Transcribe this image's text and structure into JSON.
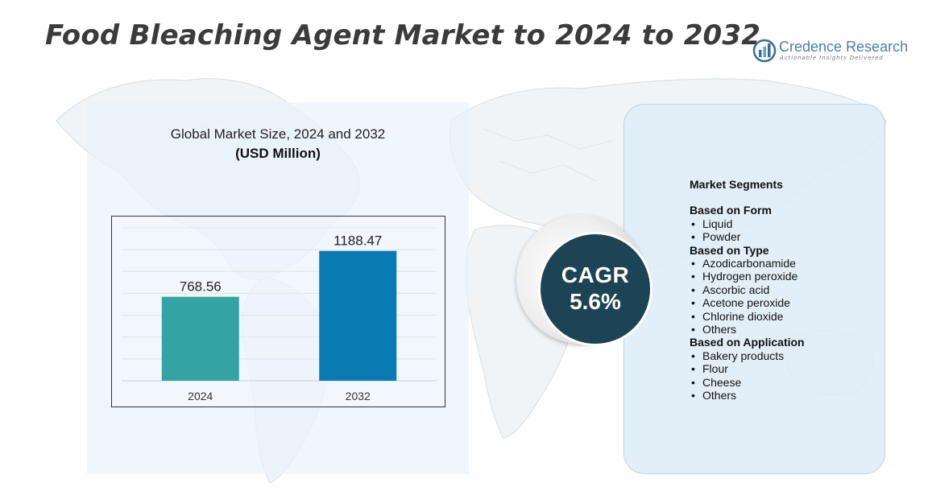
{
  "title": "Food Bleaching Agent Market to 2024 to 2032",
  "logo": {
    "name": "Credence Research",
    "tagline": "Actionable Insights Delivered"
  },
  "colors": {
    "bar_2024": "#34a3a3",
    "bar_2032": "#0a7ab2",
    "cagr_circle": "#1d4454"
  },
  "chart_data": {
    "type": "bar",
    "title": "Global Market Size, 2024 and 2032",
    "subtitle": "(USD Million)",
    "categories": [
      "2024",
      "2032"
    ],
    "values": [
      768.56,
      1188.47
    ],
    "value_labels": [
      "768.56",
      "1188.47"
    ],
    "ylim": [
      0,
      1400
    ],
    "grid": true,
    "legend": "none"
  },
  "cagr": {
    "label": "CAGR",
    "value": "5.6%"
  },
  "segments": {
    "header": "Market Segments",
    "groups": [
      {
        "title": "Based on Form",
        "items": [
          "Liquid",
          "Powder"
        ]
      },
      {
        "title": "Based on Type",
        "items": [
          "Azodicarbonamide",
          "Hydrogen peroxide",
          "Ascorbic acid",
          "Acetone peroxide",
          "Chlorine dioxide",
          "Others"
        ]
      },
      {
        "title": "Based on Application",
        "items": [
          "Bakery products",
          "Flour",
          "Cheese",
          "Others"
        ]
      }
    ]
  }
}
